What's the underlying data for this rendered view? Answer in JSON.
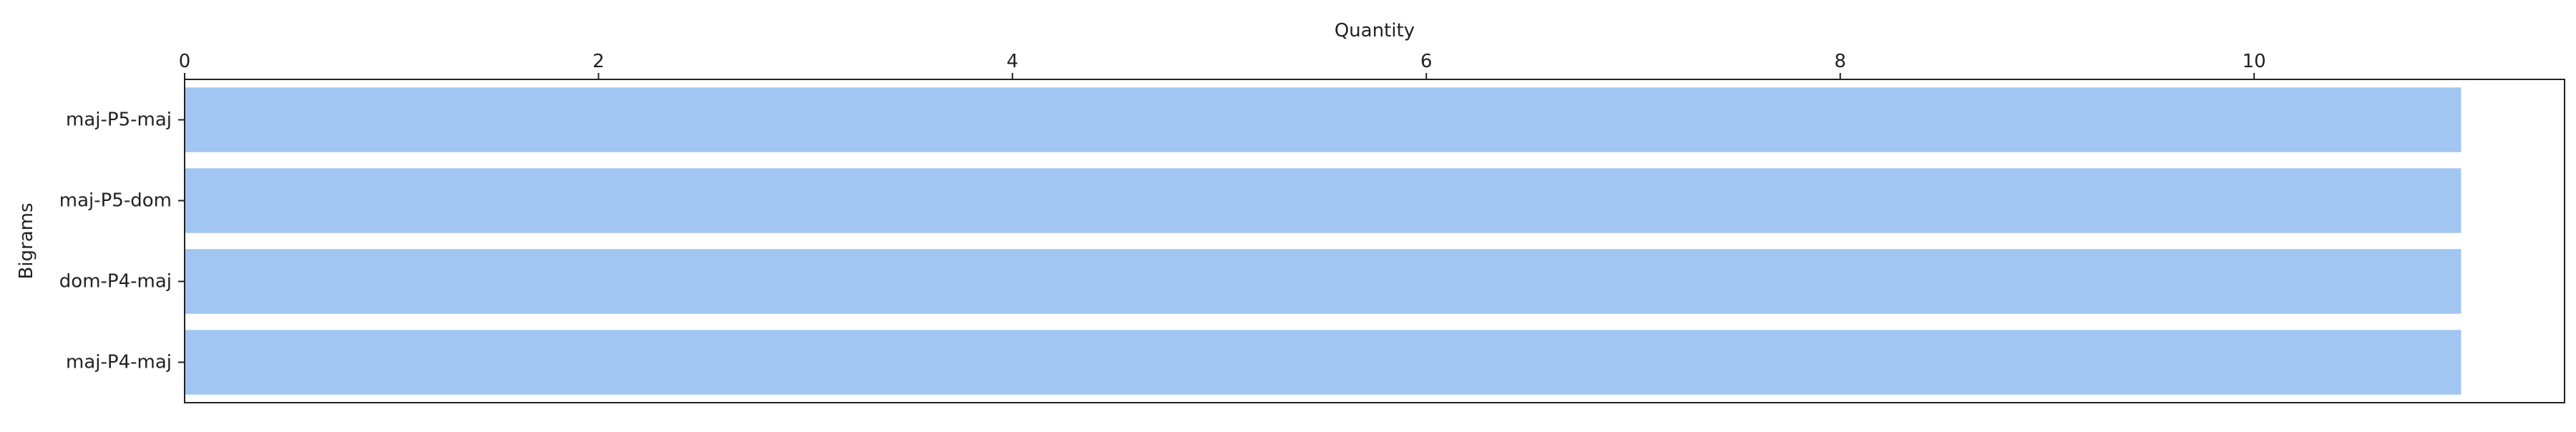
{
  "chart_data": {
    "type": "bar",
    "orientation": "horizontal",
    "xlabel": "Quantity",
    "ylabel": "Bigrams",
    "x_axis_position": "top",
    "xlim": [
      0,
      11.5
    ],
    "xticks": [
      0,
      2,
      4,
      6,
      8,
      10
    ],
    "grid": false,
    "categories": [
      "maj-P5-maj",
      "maj-P5-dom",
      "dom-P4-maj",
      "maj-P4-maj"
    ],
    "values": [
      11,
      11,
      11,
      11
    ],
    "bar_color": "#a1c6f2"
  }
}
